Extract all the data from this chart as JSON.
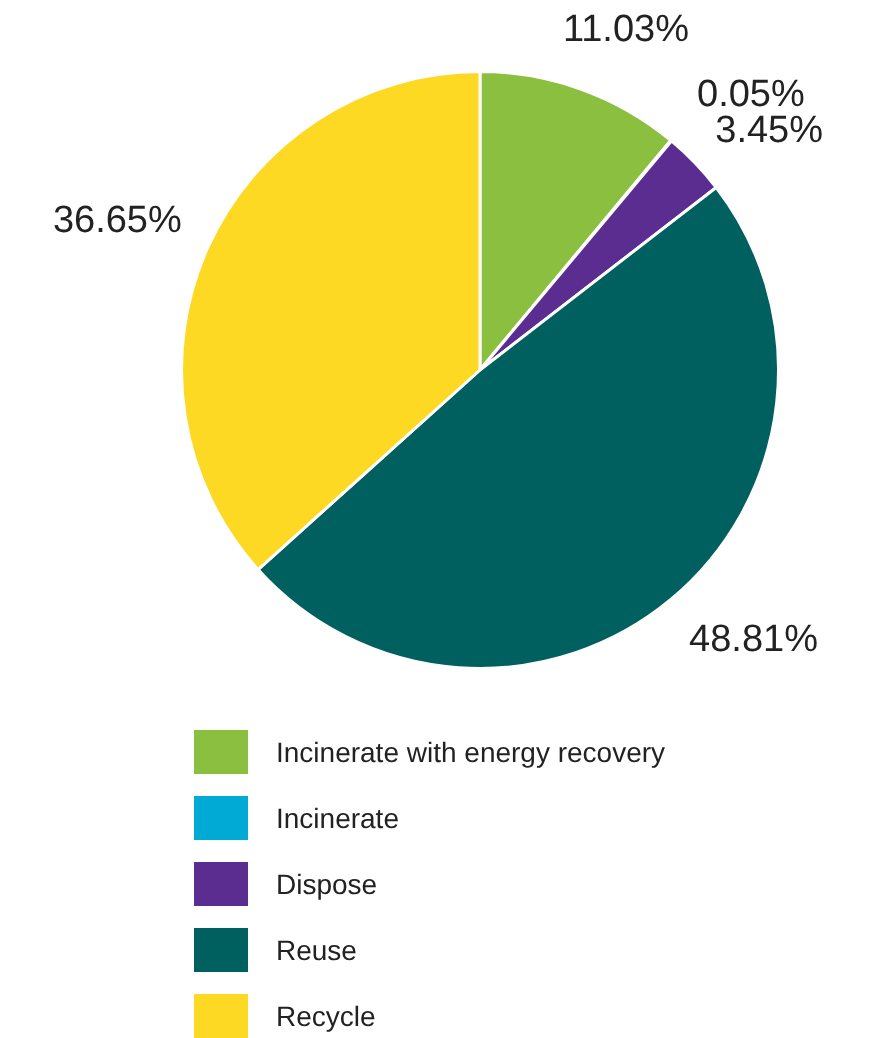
{
  "chart_data": {
    "type": "pie",
    "categories": [
      "Incinerate with energy recovery",
      "Incinerate",
      "Dispose",
      "Reuse",
      "Recycle"
    ],
    "values": [
      11.03,
      0.05,
      3.45,
      48.81,
      36.65
    ],
    "colors": [
      "#8bbf3f",
      "#00aad4",
      "#5c2d91",
      "#005f5f",
      "#fdd923"
    ],
    "value_labels": [
      "11.03%",
      "0.05%",
      "3.45%",
      "48.81%",
      "36.65%"
    ],
    "legend": "bottom"
  }
}
